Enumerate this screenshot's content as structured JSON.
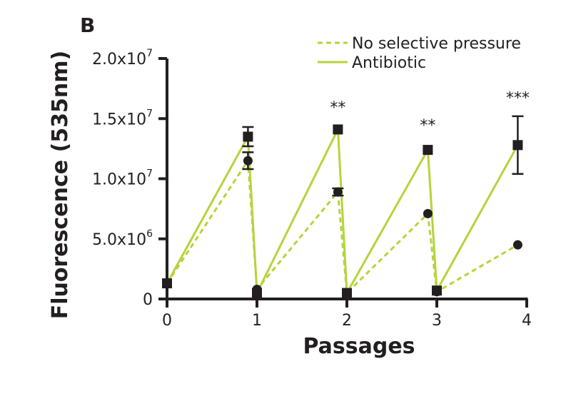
{
  "panel_label": "B",
  "chart_data": {
    "type": "line",
    "xlabel": "Passages",
    "ylabel": "Fluorescence (535nm)",
    "xlim": [
      0,
      4
    ],
    "ylim": [
      0,
      20000000
    ],
    "x_ticks": [
      0,
      1,
      2,
      3,
      4
    ],
    "x_tick_labels": [
      "0",
      "1",
      "2",
      "3",
      "4"
    ],
    "y_ticks": [
      0,
      5000000,
      10000000,
      15000000,
      20000000
    ],
    "y_tick_labels": [
      {
        "base": "0",
        "exp": ""
      },
      {
        "base": "5.0x10",
        "exp": "6"
      },
      {
        "base": "1.0x10",
        "exp": "7"
      },
      {
        "base": "1.5x10",
        "exp": "7"
      },
      {
        "base": "2.0x10",
        "exp": "7"
      }
    ],
    "grid": false,
    "legend_position": "top-right",
    "series": [
      {
        "name": "No selective pressure",
        "style": "dashed",
        "marker": "circle",
        "color": "#b5d43b",
        "x": [
          0,
          0.9,
          1.0,
          1.9,
          2.0,
          2.9,
          3.0,
          3.9
        ],
        "y": [
          1300000,
          11500000,
          800000,
          8900000,
          500000,
          7100000,
          600000,
          4500000
        ],
        "err": [
          0,
          700000,
          0,
          300000,
          0,
          0,
          0,
          0
        ]
      },
      {
        "name": "Antibiotic",
        "style": "solid",
        "marker": "square",
        "color": "#b5d43b",
        "x": [
          0,
          0.9,
          1.0,
          1.9,
          2.0,
          2.9,
          3.0,
          3.9
        ],
        "y": [
          1300000,
          13500000,
          500000,
          14100000,
          500000,
          12400000,
          700000,
          12800000
        ],
        "err": [
          0,
          800000,
          0,
          0,
          0,
          0,
          0,
          2400000
        ]
      }
    ],
    "annotations": [
      {
        "text": "**",
        "x": 1.9,
        "y": 15500000
      },
      {
        "text": "**",
        "x": 2.9,
        "y": 14000000
      },
      {
        "text": "***",
        "x": 3.9,
        "y": 16300000
      }
    ]
  }
}
